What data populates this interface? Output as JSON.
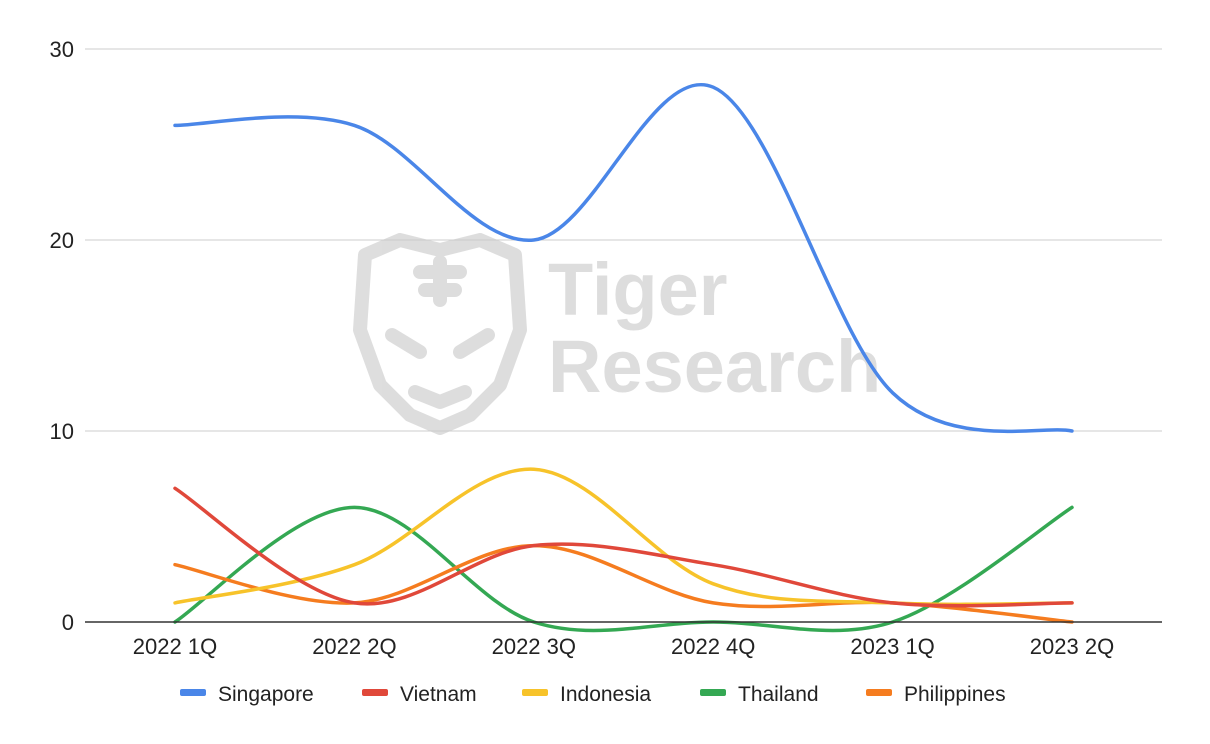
{
  "chart_data": {
    "type": "line",
    "categories": [
      "2022 1Q",
      "2022 2Q",
      "2022 3Q",
      "2022 4Q",
      "2023 1Q",
      "2023 2Q"
    ],
    "series": [
      {
        "name": "Singapore",
        "color": "#4A86E8",
        "values": [
          26,
          26,
          20,
          28,
          12,
          10
        ]
      },
      {
        "name": "Vietnam",
        "color": "#E0483A",
        "values": [
          7,
          1,
          4,
          3,
          1,
          1
        ]
      },
      {
        "name": "Indonesia",
        "color": "#F7C32A",
        "values": [
          1,
          3,
          8,
          2,
          1,
          1
        ]
      },
      {
        "name": "Thailand",
        "color": "#34A853",
        "values": [
          0,
          6,
          0,
          0,
          0,
          6
        ]
      },
      {
        "name": "Philippines",
        "color": "#F57C1F",
        "values": [
          3,
          1,
          4,
          1,
          1,
          0
        ]
      }
    ],
    "yticks": [
      "0",
      "10",
      "20",
      "30"
    ],
    "ylim": [
      0,
      30
    ],
    "grid": true,
    "legend_position": "bottom",
    "watermark": {
      "line1": "Tiger",
      "line2": "Research"
    }
  }
}
